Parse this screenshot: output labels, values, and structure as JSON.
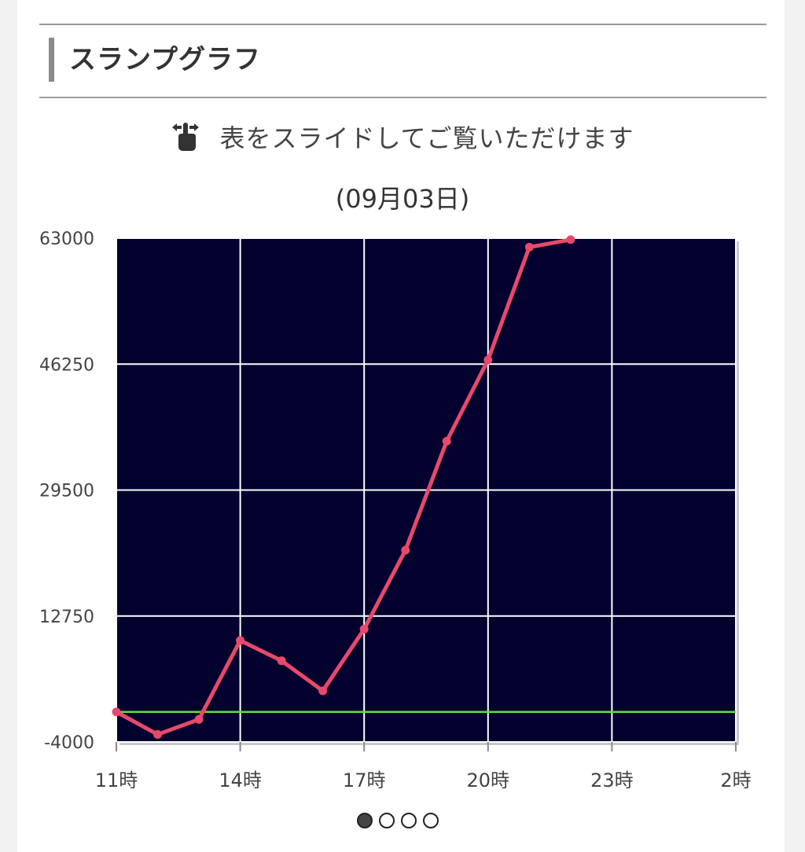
{
  "section": {
    "title": "スランプグラフ"
  },
  "hint": {
    "icon": "swipe-hand-icon",
    "text": "表をスライドしてご覧いただけます"
  },
  "chart_data": {
    "type": "line",
    "title": "",
    "subtitle": "(09月03日)",
    "xlabel": "",
    "ylabel": "",
    "x_ticks": [
      "11時",
      "14時",
      "17時",
      "20時",
      "23時",
      "2時"
    ],
    "y_ticks": [
      "63000",
      "46250",
      "29500",
      "12750",
      "-4000"
    ],
    "ylim": [
      -4000,
      63000
    ],
    "x_range_hours": [
      11,
      26
    ],
    "grid": true,
    "background_color": "#02012e",
    "line_color": "#e8496b",
    "baseline_color": "#66dd33",
    "baseline_value": 0,
    "series": [
      {
        "x": [
          11,
          12,
          13,
          14,
          15,
          16,
          17,
          18,
          19,
          20,
          21,
          22
        ],
        "values": [
          0,
          -3000,
          -1000,
          9500,
          6800,
          2800,
          11000,
          21500,
          36000,
          46800,
          61800,
          62800
        ]
      }
    ]
  },
  "pagination": {
    "pages": 4,
    "active": 0
  }
}
